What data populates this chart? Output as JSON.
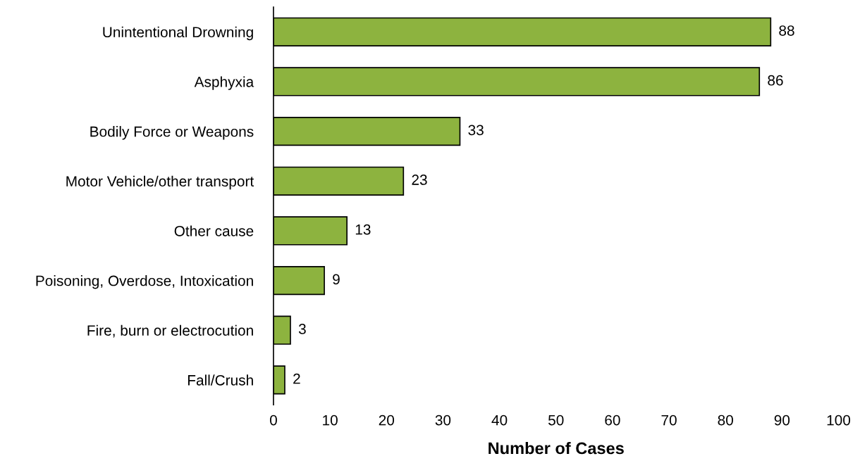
{
  "chart_data": {
    "type": "bar",
    "orientation": "horizontal",
    "xlabel": "Number of Cases",
    "categories": [
      "Unintentional Drowning",
      "Asphyxia",
      "Bodily Force or Weapons",
      "Motor Vehicle/other transport",
      "Other cause",
      "Poisoning, Overdose, Intoxication",
      "Fire, burn or electrocution",
      "Fall/Crush"
    ],
    "values": [
      88,
      86,
      33,
      23,
      13,
      9,
      3,
      2
    ],
    "color": "#8db33f",
    "xlim": [
      0,
      100
    ],
    "xticks": [
      0,
      10,
      20,
      30,
      40,
      50,
      60,
      70,
      80,
      90,
      100
    ],
    "data_labels": true,
    "grid": false,
    "legend": false
  }
}
